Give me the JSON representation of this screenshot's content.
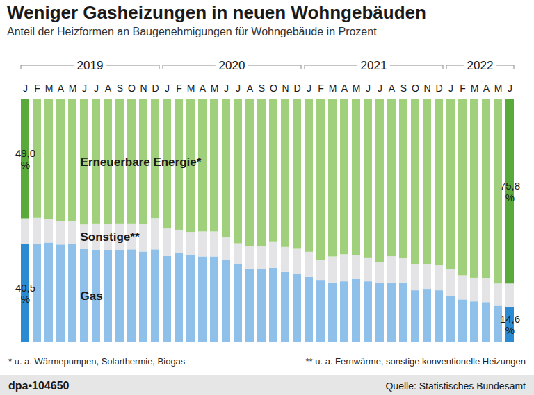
{
  "chart_data": {
    "type": "bar",
    "stacked": true,
    "title": "Weniger Gasheizungen in neuen Wohngebäuden",
    "subtitle": "Anteil der Heizformen an Baugenehmigungen für Wohngebäude in Prozent",
    "categories": [
      "J",
      "F",
      "M",
      "A",
      "M",
      "J",
      "J",
      "A",
      "S",
      "O",
      "N",
      "D",
      "J",
      "F",
      "M",
      "A",
      "M",
      "J",
      "J",
      "A",
      "S",
      "O",
      "N",
      "D",
      "J",
      "F",
      "M",
      "A",
      "M",
      "J",
      "J",
      "A",
      "S",
      "O",
      "N",
      "D",
      "J",
      "F",
      "M",
      "A",
      "M",
      "J"
    ],
    "years": [
      "2019",
      "2020",
      "2021",
      "2022"
    ],
    "ylim": [
      0,
      100
    ],
    "tick_labels": "x",
    "series": [
      {
        "name": "Gas",
        "values": [
          40.5,
          40.5,
          41.0,
          40.2,
          40.5,
          38.5,
          38.0,
          38.0,
          38.0,
          38.2,
          37.3,
          38.2,
          35.5,
          36.7,
          35.8,
          35.3,
          35.3,
          33.8,
          32.1,
          30.3,
          30.1,
          30.6,
          28.9,
          28.0,
          26.9,
          25.4,
          24.6,
          25.1,
          26.0,
          25.1,
          24.3,
          24.3,
          24.6,
          21.4,
          21.7,
          21.4,
          19.1,
          17.6,
          16.8,
          16.5,
          15.0,
          14.6
        ],
        "value_labels": [
          "40,5 %",
          null,
          null,
          null,
          null,
          null,
          null,
          null,
          null,
          null,
          null,
          null,
          null,
          null,
          null,
          null,
          null,
          null,
          null,
          null,
          null,
          null,
          null,
          null,
          null,
          null,
          null,
          null,
          null,
          null,
          null,
          null,
          null,
          null,
          null,
          null,
          null,
          null,
          null,
          null,
          null,
          "14,6 %"
        ],
        "colors": [
          "#2b8bd2",
          "#8fc0e9",
          "#8fc0e9",
          "#8fc0e9",
          "#8fc0e9",
          "#8fc0e9",
          "#8fc0e9",
          "#8fc0e9",
          "#8fc0e9",
          "#8fc0e9",
          "#8fc0e9",
          "#8fc0e9",
          "#8fc0e9",
          "#8fc0e9",
          "#8fc0e9",
          "#8fc0e9",
          "#8fc0e9",
          "#8fc0e9",
          "#8fc0e9",
          "#8fc0e9",
          "#8fc0e9",
          "#8fc0e9",
          "#8fc0e9",
          "#8fc0e9",
          "#8fc0e9",
          "#8fc0e9",
          "#8fc0e9",
          "#8fc0e9",
          "#8fc0e9",
          "#8fc0e9",
          "#8fc0e9",
          "#8fc0e9",
          "#8fc0e9",
          "#8fc0e9",
          "#8fc0e9",
          "#8fc0e9",
          "#8fc0e9",
          "#8fc0e9",
          "#8fc0e9",
          "#8fc0e9",
          "#8fc0e9",
          "#2b8bd2"
        ]
      },
      {
        "name": "Sonstige**",
        "values": [
          10.5,
          10.7,
          9.8,
          9.6,
          9.4,
          10.0,
          10.9,
          10.7,
          10.9,
          10.7,
          11.5,
          12.9,
          11.3,
          9.6,
          9.6,
          10.3,
          10.3,
          9.4,
          8.6,
          9.2,
          9.4,
          10.9,
          10.3,
          10.7,
          10.3,
          8.6,
          10.7,
          11.1,
          10.0,
          9.8,
          8.8,
          11.1,
          10.0,
          10.7,
          10.5,
          10.3,
          10.9,
          10.0,
          9.8,
          9.8,
          9.2,
          9.6
        ],
        "color": "#e4e4e6"
      },
      {
        "name": "Erneuerbare Energie*",
        "values": [
          49.0,
          48.8,
          49.2,
          50.2,
          50.1,
          51.5,
          51.1,
          51.3,
          51.1,
          51.1,
          51.2,
          48.9,
          53.2,
          53.7,
          54.6,
          54.4,
          54.4,
          56.8,
          59.3,
          60.5,
          60.5,
          58.5,
          60.8,
          61.3,
          62.8,
          66.0,
          64.7,
          63.8,
          64.0,
          65.1,
          66.9,
          64.6,
          65.4,
          67.9,
          67.8,
          68.3,
          70.0,
          72.4,
          73.4,
          73.7,
          75.8,
          75.8
        ],
        "value_labels": [
          "49,0 %",
          null,
          null,
          null,
          null,
          null,
          null,
          null,
          null,
          null,
          null,
          null,
          null,
          null,
          null,
          null,
          null,
          null,
          null,
          null,
          null,
          null,
          null,
          null,
          null,
          null,
          null,
          null,
          null,
          null,
          null,
          null,
          null,
          null,
          null,
          null,
          null,
          null,
          null,
          null,
          null,
          "75,8 %"
        ],
        "colors": [
          "#5aa93b",
          "#a1d07c",
          "#a1d07c",
          "#a1d07c",
          "#a1d07c",
          "#a1d07c",
          "#a1d07c",
          "#a1d07c",
          "#a1d07c",
          "#a1d07c",
          "#a1d07c",
          "#a1d07c",
          "#a1d07c",
          "#a1d07c",
          "#a1d07c",
          "#a1d07c",
          "#a1d07c",
          "#a1d07c",
          "#a1d07c",
          "#a1d07c",
          "#a1d07c",
          "#a1d07c",
          "#a1d07c",
          "#a1d07c",
          "#a1d07c",
          "#a1d07c",
          "#a1d07c",
          "#a1d07c",
          "#a1d07c",
          "#a1d07c",
          "#a1d07c",
          "#a1d07c",
          "#a1d07c",
          "#a1d07c",
          "#a1d07c",
          "#a1d07c",
          "#a1d07c",
          "#a1d07c",
          "#a1d07c",
          "#a1d07c",
          "#a1d07c",
          "#5aa93b"
        ]
      }
    ],
    "footnotes": [
      "* u. a. Wärmepumpen, Solarthermie, Biogas",
      "** u. a. Fernwärme, sonstige konventionelle Heizungen"
    ],
    "credit": "dpa•104650",
    "source": "Quelle: Statistisches Bundesamt"
  }
}
